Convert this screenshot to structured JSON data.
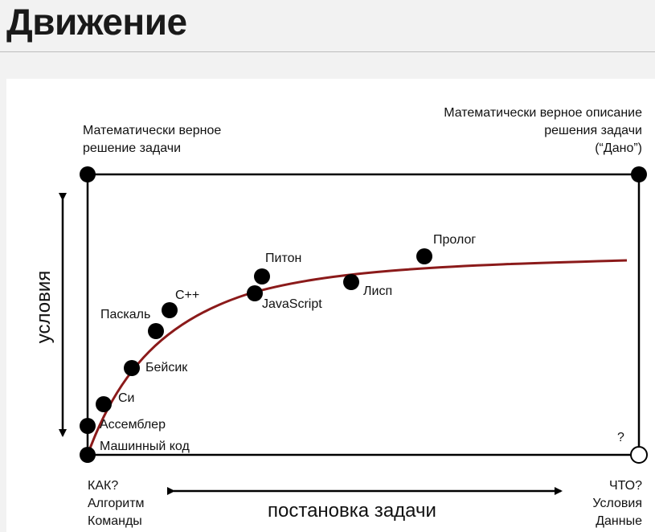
{
  "title": "Движение",
  "corners": {
    "top_left": [
      "Математически верное",
      "решение задачи"
    ],
    "top_right": [
      "Математически верное описание",
      "решения задачи",
      "(“Дано”)"
    ],
    "bottom_left": [
      "КАК?",
      "Алгоритм",
      "Команды"
    ],
    "bottom_right": [
      "ЧТО?",
      "Условия",
      "Данные"
    ],
    "bottom_right_marker": "?"
  },
  "axes": {
    "horizontal": "постановка задачи",
    "vertical": "условия"
  },
  "points": [
    {
      "label": "Машинный код"
    },
    {
      "label": "Ассемблер"
    },
    {
      "label": "Си"
    },
    {
      "label": "Бейсик"
    },
    {
      "label": "Паскаль"
    },
    {
      "label": "C++"
    },
    {
      "label": "JavaScript"
    },
    {
      "label": "Питон"
    },
    {
      "label": "Лисп"
    },
    {
      "label": "Пролог"
    }
  ],
  "colors": {
    "curve": "#8b1a1a",
    "dots": "#000000",
    "frame": "#000000"
  }
}
